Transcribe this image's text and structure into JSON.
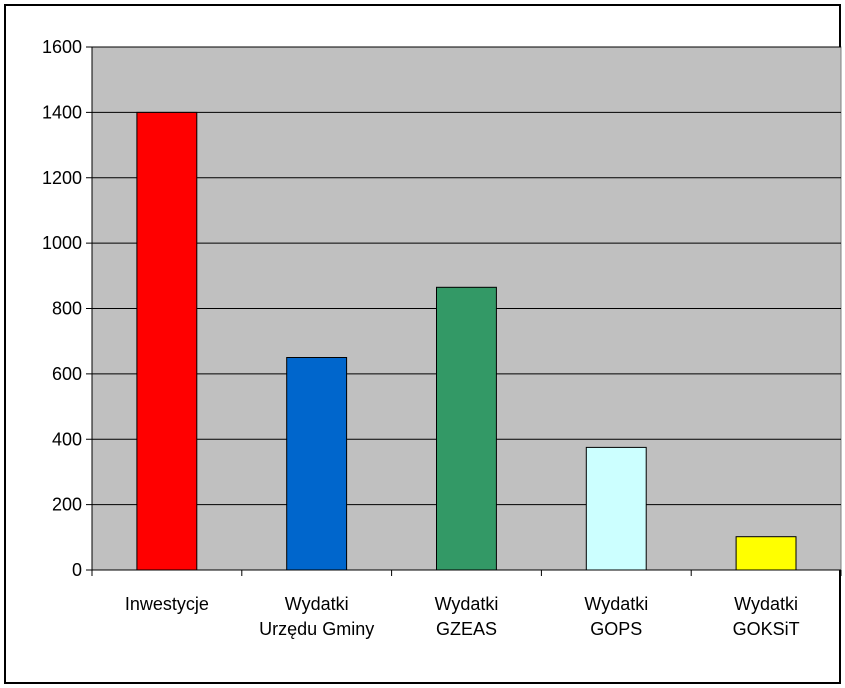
{
  "chart_data": {
    "type": "bar",
    "title": "",
    "xlabel": "",
    "ylabel": "",
    "ylim": [
      0,
      1600
    ],
    "yticks": [
      0,
      200,
      400,
      600,
      800,
      1000,
      1200,
      1400,
      1600
    ],
    "grid": true,
    "legend": "none",
    "categories": [
      [
        "Inwestycje"
      ],
      [
        "Wydatki",
        "Urzędu Gminy"
      ],
      [
        "Wydatki",
        "GZEAS"
      ],
      [
        "Wydatki",
        "GOPS"
      ],
      [
        "Wydatki",
        "GOKSiT"
      ]
    ],
    "values": [
      1400,
      650,
      865,
      375,
      102
    ],
    "colors": [
      "#ff0000",
      "#0066cc",
      "#339966",
      "#ccffff",
      "#ffff00"
    ],
    "plot_background": "#c0c0c0"
  }
}
